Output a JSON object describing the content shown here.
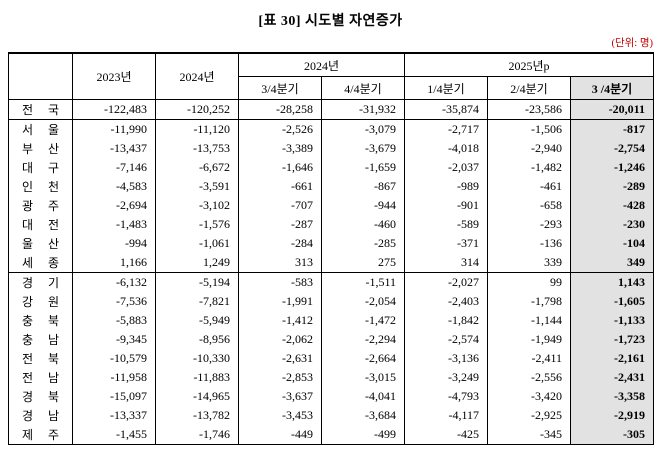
{
  "title": "[표 30] 시도별 자연증가",
  "unit_label": "(단위: 명)",
  "colors": {
    "highlight_bg": "#e2e2e2",
    "unit_text": "#c00000",
    "border": "#000000"
  },
  "table": {
    "col_headers": {
      "region": "",
      "y2023": "2023년",
      "y2024": "2024년",
      "y2024_group": "2024년",
      "y2025_group": "2025년p",
      "q3_2024": "3/4분기",
      "q4_2024": "4/4분기",
      "q1_2025": "1/4분기",
      "q2_2025": "2/4분기",
      "q3_2025": "3 /4분기"
    },
    "rows": [
      {
        "region": "전 국",
        "values": [
          "-122,483",
          "-120,252",
          "-28,258",
          "-31,932",
          "-35,874",
          "-23,586",
          "-20,011"
        ],
        "group_end": true
      },
      {
        "region": "서 울",
        "values": [
          "-11,990",
          "-11,120",
          "-2,526",
          "-3,079",
          "-2,717",
          "-1,506",
          "-817"
        ],
        "group_end": false
      },
      {
        "region": "부 산",
        "values": [
          "-13,437",
          "-13,753",
          "-3,389",
          "-3,679",
          "-4,018",
          "-2,940",
          "-2,754"
        ],
        "group_end": false
      },
      {
        "region": "대 구",
        "values": [
          "-7,146",
          "-6,672",
          "-1,646",
          "-1,659",
          "-2,037",
          "-1,482",
          "-1,246"
        ],
        "group_end": false
      },
      {
        "region": "인 천",
        "values": [
          "-4,583",
          "-3,591",
          "-661",
          "-867",
          "-989",
          "-461",
          "-289"
        ],
        "group_end": false
      },
      {
        "region": "광 주",
        "values": [
          "-2,694",
          "-3,102",
          "-707",
          "-944",
          "-901",
          "-658",
          "-428"
        ],
        "group_end": false
      },
      {
        "region": "대 전",
        "values": [
          "-1,483",
          "-1,576",
          "-287",
          "-460",
          "-589",
          "-293",
          "-230"
        ],
        "group_end": false
      },
      {
        "region": "울 산",
        "values": [
          "-994",
          "-1,061",
          "-284",
          "-285",
          "-371",
          "-136",
          "-104"
        ],
        "group_end": false
      },
      {
        "region": "세 종",
        "values": [
          "1,166",
          "1,249",
          "313",
          "275",
          "314",
          "339",
          "349"
        ],
        "group_end": true
      },
      {
        "region": "경 기",
        "values": [
          "-6,132",
          "-5,194",
          "-583",
          "-1,511",
          "-2,027",
          "99",
          "1,143"
        ],
        "group_end": false
      },
      {
        "region": "강 원",
        "values": [
          "-7,536",
          "-7,821",
          "-1,991",
          "-2,054",
          "-2,403",
          "-1,798",
          "-1,605"
        ],
        "group_end": false
      },
      {
        "region": "충 북",
        "values": [
          "-5,883",
          "-5,949",
          "-1,412",
          "-1,472",
          "-1,842",
          "-1,144",
          "-1,133"
        ],
        "group_end": false
      },
      {
        "region": "충 남",
        "values": [
          "-9,345",
          "-8,956",
          "-2,062",
          "-2,294",
          "-2,574",
          "-1,949",
          "-1,723"
        ],
        "group_end": false
      },
      {
        "region": "전 북",
        "values": [
          "-10,579",
          "-10,330",
          "-2,631",
          "-2,664",
          "-3,136",
          "-2,411",
          "-2,161"
        ],
        "group_end": false
      },
      {
        "region": "전 남",
        "values": [
          "-11,958",
          "-11,883",
          "-2,853",
          "-3,015",
          "-3,249",
          "-2,556",
          "-2,431"
        ],
        "group_end": false
      },
      {
        "region": "경 북",
        "values": [
          "-15,097",
          "-14,965",
          "-3,637",
          "-4,041",
          "-4,793",
          "-3,420",
          "-3,358"
        ],
        "group_end": false
      },
      {
        "region": "경 남",
        "values": [
          "-13,337",
          "-13,782",
          "-3,453",
          "-3,684",
          "-4,117",
          "-2,925",
          "-2,919"
        ],
        "group_end": false
      },
      {
        "region": "제 주",
        "values": [
          "-1,455",
          "-1,746",
          "-449",
          "-499",
          "-425",
          "-345",
          "-305"
        ],
        "group_end": false
      }
    ]
  }
}
